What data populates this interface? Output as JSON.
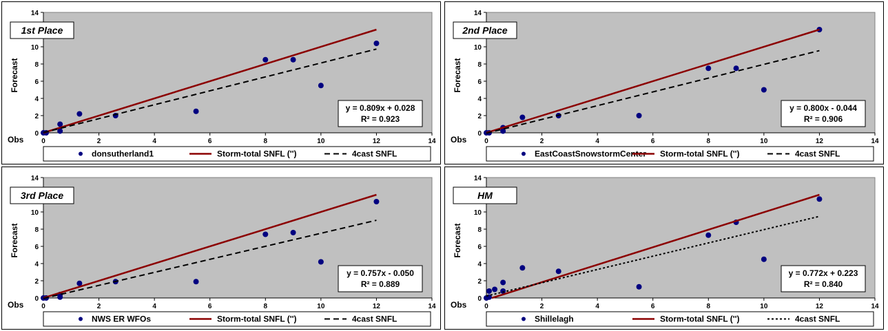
{
  "colors": {
    "plot_bg": "#c0c0c0",
    "point": "#000080",
    "storm_line": "#8b0000",
    "forecast_line": "#000000"
  },
  "chart_data": [
    {
      "type": "scatter",
      "place": "1st Place",
      "ylabel": "Forecast",
      "xlabel": "Obs",
      "xlim": [
        0,
        14
      ],
      "ylim": [
        0,
        14
      ],
      "xticks": [
        0,
        2,
        4,
        6,
        8,
        10,
        12,
        14
      ],
      "yticks": [
        0,
        2,
        4,
        6,
        8,
        10,
        12,
        14
      ],
      "equation": "y = 0.809x + 0.028",
      "r2": "R² = 0.923",
      "series": [
        {
          "name": "donsutherland1",
          "kind": "points",
          "points": [
            [
              0,
              0
            ],
            [
              0.1,
              0
            ],
            [
              0.6,
              0.2
            ],
            [
              0.6,
              1.0
            ],
            [
              1.3,
              2.2
            ],
            [
              2.6,
              2.0
            ],
            [
              5.5,
              2.5
            ],
            [
              8,
              8.5
            ],
            [
              9,
              8.5
            ],
            [
              10,
              5.5
            ],
            [
              12,
              10.4
            ]
          ]
        },
        {
          "name": "Storm-total SNFL ('')",
          "kind": "line",
          "points": [
            [
              0,
              0
            ],
            [
              12,
              12
            ]
          ]
        },
        {
          "name": "4cast SNFL",
          "kind": "dashed",
          "points": [
            [
              0,
              0.028
            ],
            [
              12,
              9.736
            ]
          ]
        }
      ]
    },
    {
      "type": "scatter",
      "place": "2nd Place",
      "ylabel": "Forecast",
      "xlabel": "Obs",
      "xlim": [
        0,
        14
      ],
      "ylim": [
        0,
        14
      ],
      "xticks": [
        0,
        2,
        4,
        6,
        8,
        10,
        12,
        14
      ],
      "yticks": [
        0,
        2,
        4,
        6,
        8,
        10,
        12,
        14
      ],
      "equation": "y = 0.800x - 0.044",
      "r2": "R² = 0.906",
      "series": [
        {
          "name": "EastCoastSnowstormCenter",
          "kind": "points",
          "points": [
            [
              0,
              0
            ],
            [
              0.1,
              0
            ],
            [
              0.6,
              0.2
            ],
            [
              0.6,
              0.6
            ],
            [
              1.3,
              1.8
            ],
            [
              2.6,
              2.0
            ],
            [
              5.5,
              2.0
            ],
            [
              8,
              7.5
            ],
            [
              9,
              7.5
            ],
            [
              10,
              5.0
            ],
            [
              12,
              12.0
            ]
          ]
        },
        {
          "name": "Storm-total SNFL ('')",
          "kind": "line",
          "points": [
            [
              0,
              0
            ],
            [
              12,
              12
            ]
          ]
        },
        {
          "name": "4cast SNFL",
          "kind": "dashed",
          "points": [
            [
              0,
              -0.044
            ],
            [
              12,
              9.556
            ]
          ]
        }
      ]
    },
    {
      "type": "scatter",
      "place": "3rd Place",
      "ylabel": "Forecast",
      "xlabel": "Obs",
      "xlim": [
        0,
        14
      ],
      "ylim": [
        0,
        14
      ],
      "xticks": [
        0,
        2,
        4,
        6,
        8,
        10,
        12,
        14
      ],
      "yticks": [
        0,
        2,
        4,
        6,
        8,
        10,
        12,
        14
      ],
      "equation": "y = 0.757x - 0.050",
      "r2": "R² = 0.889",
      "series": [
        {
          "name": "NWS ER WFOs",
          "kind": "points",
          "points": [
            [
              0,
              0
            ],
            [
              0.1,
              0
            ],
            [
              0.6,
              0.1
            ],
            [
              0.6,
              0.4
            ],
            [
              1.3,
              1.7
            ],
            [
              2.6,
              1.9
            ],
            [
              5.5,
              1.9
            ],
            [
              8,
              7.4
            ],
            [
              9,
              7.6
            ],
            [
              10,
              4.2
            ],
            [
              12,
              11.2
            ]
          ]
        },
        {
          "name": "Storm-total SNFL ('')",
          "kind": "line",
          "points": [
            [
              0,
              0
            ],
            [
              12,
              12
            ]
          ]
        },
        {
          "name": "4cast SNFL",
          "kind": "dashed",
          "points": [
            [
              0,
              -0.05
            ],
            [
              12,
              9.034
            ]
          ]
        }
      ]
    },
    {
      "type": "scatter",
      "place": "HM",
      "ylabel": "Forecast",
      "xlabel": "Obs",
      "xlim": [
        0,
        14
      ],
      "ylim": [
        0,
        14
      ],
      "xticks": [
        0,
        2,
        4,
        6,
        8,
        10,
        12,
        14
      ],
      "yticks": [
        0,
        2,
        4,
        6,
        8,
        10,
        12,
        14
      ],
      "equation": "y = 0.772x + 0.223",
      "r2": "R² = 0.840",
      "series": [
        {
          "name": "Shillelagh",
          "kind": "points",
          "points": [
            [
              0,
              0
            ],
            [
              0.1,
              0.1
            ],
            [
              0.1,
              0.8
            ],
            [
              0.3,
              1.0
            ],
            [
              0.6,
              0.8
            ],
            [
              0.6,
              1.8
            ],
            [
              1.3,
              3.5
            ],
            [
              2.6,
              3.1
            ],
            [
              5.5,
              1.3
            ],
            [
              8,
              7.3
            ],
            [
              9,
              8.8
            ],
            [
              10,
              4.5
            ],
            [
              12,
              11.5
            ]
          ]
        },
        {
          "name": "Storm-total SNFL ('')",
          "kind": "line",
          "points": [
            [
              0.2,
              0
            ],
            [
              12,
              12
            ]
          ]
        },
        {
          "name": "4cast SNFL",
          "kind": "dotdash",
          "points": [
            [
              0,
              0.223
            ],
            [
              12,
              9.487
            ]
          ]
        }
      ]
    }
  ]
}
